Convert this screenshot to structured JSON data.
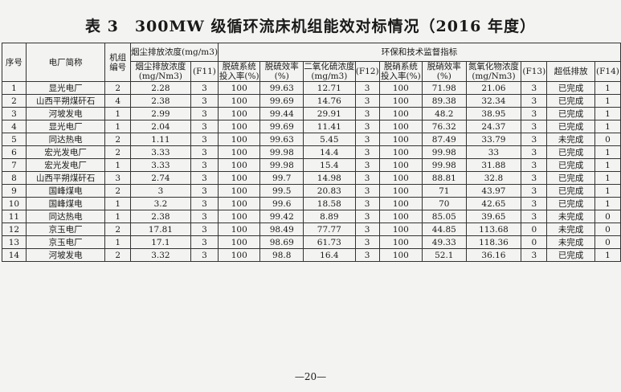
{
  "title": "表 3　300MW 级循环流床机组能效对标情况（2016 年度）",
  "headers": {
    "seq": "序号",
    "plant": "电厂简称",
    "unit": "机组编号",
    "dust_group": "烟尘排放浓度(mg/m3)",
    "env_group": "环保和技术监督指标",
    "dust": "烟尘排放浓度(mg/Nm3)",
    "f11": "(F11)",
    "desulf_rate": "脱硫系统投入率(%)",
    "desulf_eff": "脱硫效率(%)",
    "so2": "二氧化硫浓度(mg/m3)",
    "f12": "(F12)",
    "denox_rate": "脱硝系统投入率(%)",
    "denox_eff": "脱硝效率(%)",
    "nox": "氮氧化物浓度(mg/Nm3)",
    "f13": "(F13)",
    "ultra": "超低排放",
    "f14": "(F14)"
  },
  "rows": [
    [
      "1",
      "显光电厂",
      "2",
      "2.28",
      "3",
      "100",
      "99.63",
      "12.71",
      "3",
      "100",
      "71.98",
      "21.06",
      "3",
      "已完成",
      "1"
    ],
    [
      "2",
      "山西平朔煤矸石",
      "4",
      "2.38",
      "3",
      "100",
      "99.69",
      "14.76",
      "3",
      "100",
      "89.38",
      "32.34",
      "3",
      "已完成",
      "1"
    ],
    [
      "3",
      "河坡发电",
      "1",
      "2.99",
      "3",
      "100",
      "99.44",
      "29.91",
      "3",
      "100",
      "48.2",
      "38.95",
      "3",
      "已完成",
      "1"
    ],
    [
      "4",
      "显光电厂",
      "1",
      "2.04",
      "3",
      "100",
      "99.69",
      "11.41",
      "3",
      "100",
      "76.32",
      "24.37",
      "3",
      "已完成",
      "1"
    ],
    [
      "5",
      "同达热电",
      "2",
      "1.11",
      "3",
      "100",
      "99.63",
      "5.45",
      "3",
      "100",
      "87.49",
      "33.79",
      "3",
      "未完成",
      "0"
    ],
    [
      "6",
      "宏光发电厂",
      "2",
      "3.33",
      "3",
      "100",
      "99.98",
      "14.4",
      "3",
      "100",
      "99.98",
      "33",
      "3",
      "已完成",
      "1"
    ],
    [
      "7",
      "宏光发电厂",
      "1",
      "3.33",
      "3",
      "100",
      "99.98",
      "15.4",
      "3",
      "100",
      "99.98",
      "31.88",
      "3",
      "已完成",
      "1"
    ],
    [
      "8",
      "山西平朔煤矸石",
      "3",
      "2.74",
      "3",
      "100",
      "99.7",
      "14.98",
      "3",
      "100",
      "88.81",
      "32.8",
      "3",
      "已完成",
      "1"
    ],
    [
      "9",
      "国峰煤电",
      "2",
      "3",
      "3",
      "100",
      "99.5",
      "20.83",
      "3",
      "100",
      "71",
      "43.97",
      "3",
      "已完成",
      "1"
    ],
    [
      "10",
      "国峰煤电",
      "1",
      "3.2",
      "3",
      "100",
      "99.6",
      "18.58",
      "3",
      "100",
      "70",
      "42.65",
      "3",
      "已完成",
      "1"
    ],
    [
      "11",
      "同达热电",
      "1",
      "2.38",
      "3",
      "100",
      "99.42",
      "8.89",
      "3",
      "100",
      "85.05",
      "39.65",
      "3",
      "未完成",
      "0"
    ],
    [
      "12",
      "京玉电厂",
      "2",
      "17.81",
      "3",
      "100",
      "98.49",
      "77.77",
      "3",
      "100",
      "44.85",
      "113.68",
      "0",
      "未完成",
      "0"
    ],
    [
      "13",
      "京玉电厂",
      "1",
      "17.1",
      "3",
      "100",
      "98.69",
      "61.73",
      "3",
      "100",
      "49.33",
      "118.36",
      "0",
      "未完成",
      "0"
    ],
    [
      "14",
      "河坡发电",
      "2",
      "3.32",
      "3",
      "100",
      "98.8",
      "16.4",
      "3",
      "100",
      "52.1",
      "36.16",
      "3",
      "已完成",
      "1"
    ]
  ],
  "page_number": "—20—"
}
